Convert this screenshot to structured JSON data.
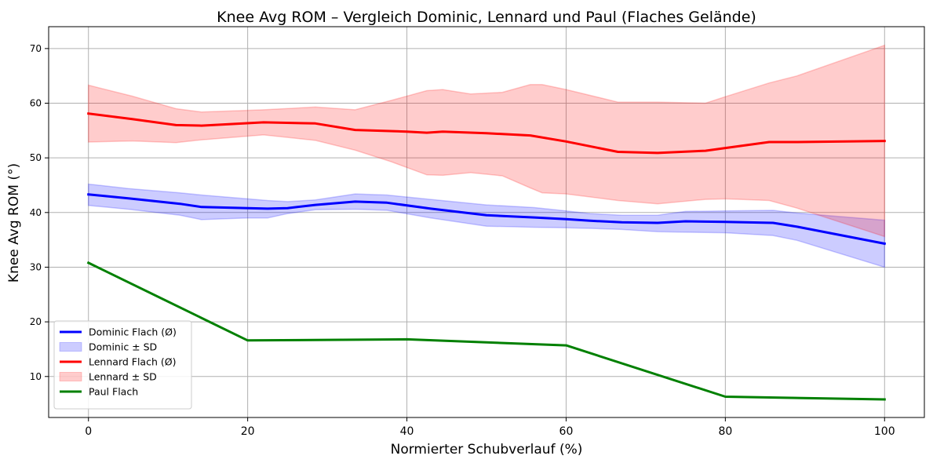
{
  "chart_data": {
    "type": "line",
    "title": "Knee Avg ROM – Vergleich Dominic, Lennard und Paul (Flaches Gelände)",
    "xlabel": "Normierter Schubverlauf (%)",
    "ylabel": "Knee Avg ROM (°)",
    "xlim": [
      -5,
      105
    ],
    "ylim": [
      2.5,
      74
    ],
    "xticks": [
      0,
      20,
      40,
      60,
      80,
      100
    ],
    "xtick_labels": [
      "0",
      "20",
      "40",
      "60",
      "80",
      "100"
    ],
    "yticks": [
      10,
      20,
      30,
      40,
      50,
      60,
      70
    ],
    "ytick_labels": [
      "10",
      "20",
      "30",
      "40",
      "50",
      "60",
      "70"
    ],
    "grid": true,
    "legend_position": "lower-left",
    "colors": {
      "dominic": "#0000ff",
      "lennard": "#ff0000",
      "paul": "#008000",
      "grid": "#b0b0b0"
    },
    "series": [
      {
        "name": "Dominic Flach (Ø)",
        "kind": "line",
        "color": "#0000ff",
        "x": [
          0,
          5,
          11.5,
          14.2,
          20,
          22.5,
          25,
          28.5,
          33.5,
          37.5,
          43,
          50,
          56,
          60,
          63,
          67,
          71.5,
          75,
          80,
          86,
          89,
          100
        ],
        "y": [
          43.3,
          42.6,
          41.6,
          41.0,
          40.8,
          40.7,
          40.8,
          41.4,
          42.0,
          41.8,
          40.7,
          39.5,
          39.1,
          38.8,
          38.5,
          38.2,
          38.1,
          38.4,
          38.3,
          38.1,
          37.4,
          34.3
        ]
      },
      {
        "name": "Dominic ± SD",
        "kind": "band",
        "color": "#0000ff",
        "x": [
          0,
          5,
          11.5,
          14.2,
          20,
          22.5,
          25,
          28.5,
          33.5,
          37.5,
          43,
          50,
          56,
          60,
          63,
          67,
          71.5,
          75,
          80,
          86,
          89,
          100
        ],
        "upper": [
          45.2,
          44.4,
          43.6,
          43.2,
          42.5,
          42.2,
          42.0,
          42.3,
          43.4,
          43.2,
          42.4,
          41.4,
          40.9,
          40.3,
          39.8,
          39.5,
          39.5,
          40.2,
          40.3,
          40.4,
          39.9,
          38.6
        ],
        "lower": [
          41.3,
          40.6,
          39.5,
          38.7,
          39.0,
          39.0,
          39.8,
          40.5,
          40.6,
          40.4,
          39.0,
          37.5,
          37.3,
          37.2,
          37.1,
          36.9,
          36.5,
          36.4,
          36.3,
          35.8,
          34.9,
          30.0
        ]
      },
      {
        "name": "Lennard Flach (Ø)",
        "kind": "line",
        "color": "#ff0000",
        "x": [
          0,
          5.5,
          11,
          14.2,
          22,
          28.5,
          33.5,
          40,
          42.5,
          44.5,
          50,
          55.5,
          60,
          66.5,
          71.5,
          77.5,
          80,
          85.5,
          89,
          100
        ],
        "y": [
          58.1,
          57.1,
          56.0,
          55.9,
          56.5,
          56.3,
          55.1,
          54.8,
          54.6,
          54.8,
          54.5,
          54.1,
          53.0,
          51.1,
          50.9,
          51.3,
          51.8,
          52.9,
          52.9,
          53.1
        ]
      },
      {
        "name": "Lennard ± SD",
        "kind": "band",
        "color": "#ff0000",
        "x": [
          0,
          5.5,
          11,
          14.2,
          22,
          28.5,
          33.5,
          38,
          42.5,
          44.5,
          48,
          52,
          55.5,
          57,
          60,
          66.5,
          71.5,
          77.5,
          80,
          85.5,
          89,
          100
        ],
        "upper": [
          63.3,
          61.3,
          59.0,
          58.4,
          58.8,
          59.3,
          58.8,
          60.5,
          62.3,
          62.5,
          61.7,
          62.0,
          63.4,
          63.4,
          62.5,
          60.2,
          60.2,
          60.0,
          61.2,
          63.7,
          65.0,
          70.6
        ],
        "lower": [
          52.9,
          53.1,
          52.8,
          53.3,
          54.2,
          53.2,
          51.4,
          49.3,
          46.9,
          46.8,
          47.3,
          46.7,
          44.5,
          43.6,
          43.4,
          42.2,
          41.6,
          42.4,
          42.5,
          42.2,
          40.8,
          35.6
        ]
      },
      {
        "name": "Paul Flach",
        "kind": "line",
        "color": "#008000",
        "x": [
          0,
          20,
          40,
          60,
          80,
          100
        ],
        "y": [
          30.8,
          16.6,
          16.8,
          15.7,
          6.3,
          5.8
        ]
      }
    ]
  }
}
